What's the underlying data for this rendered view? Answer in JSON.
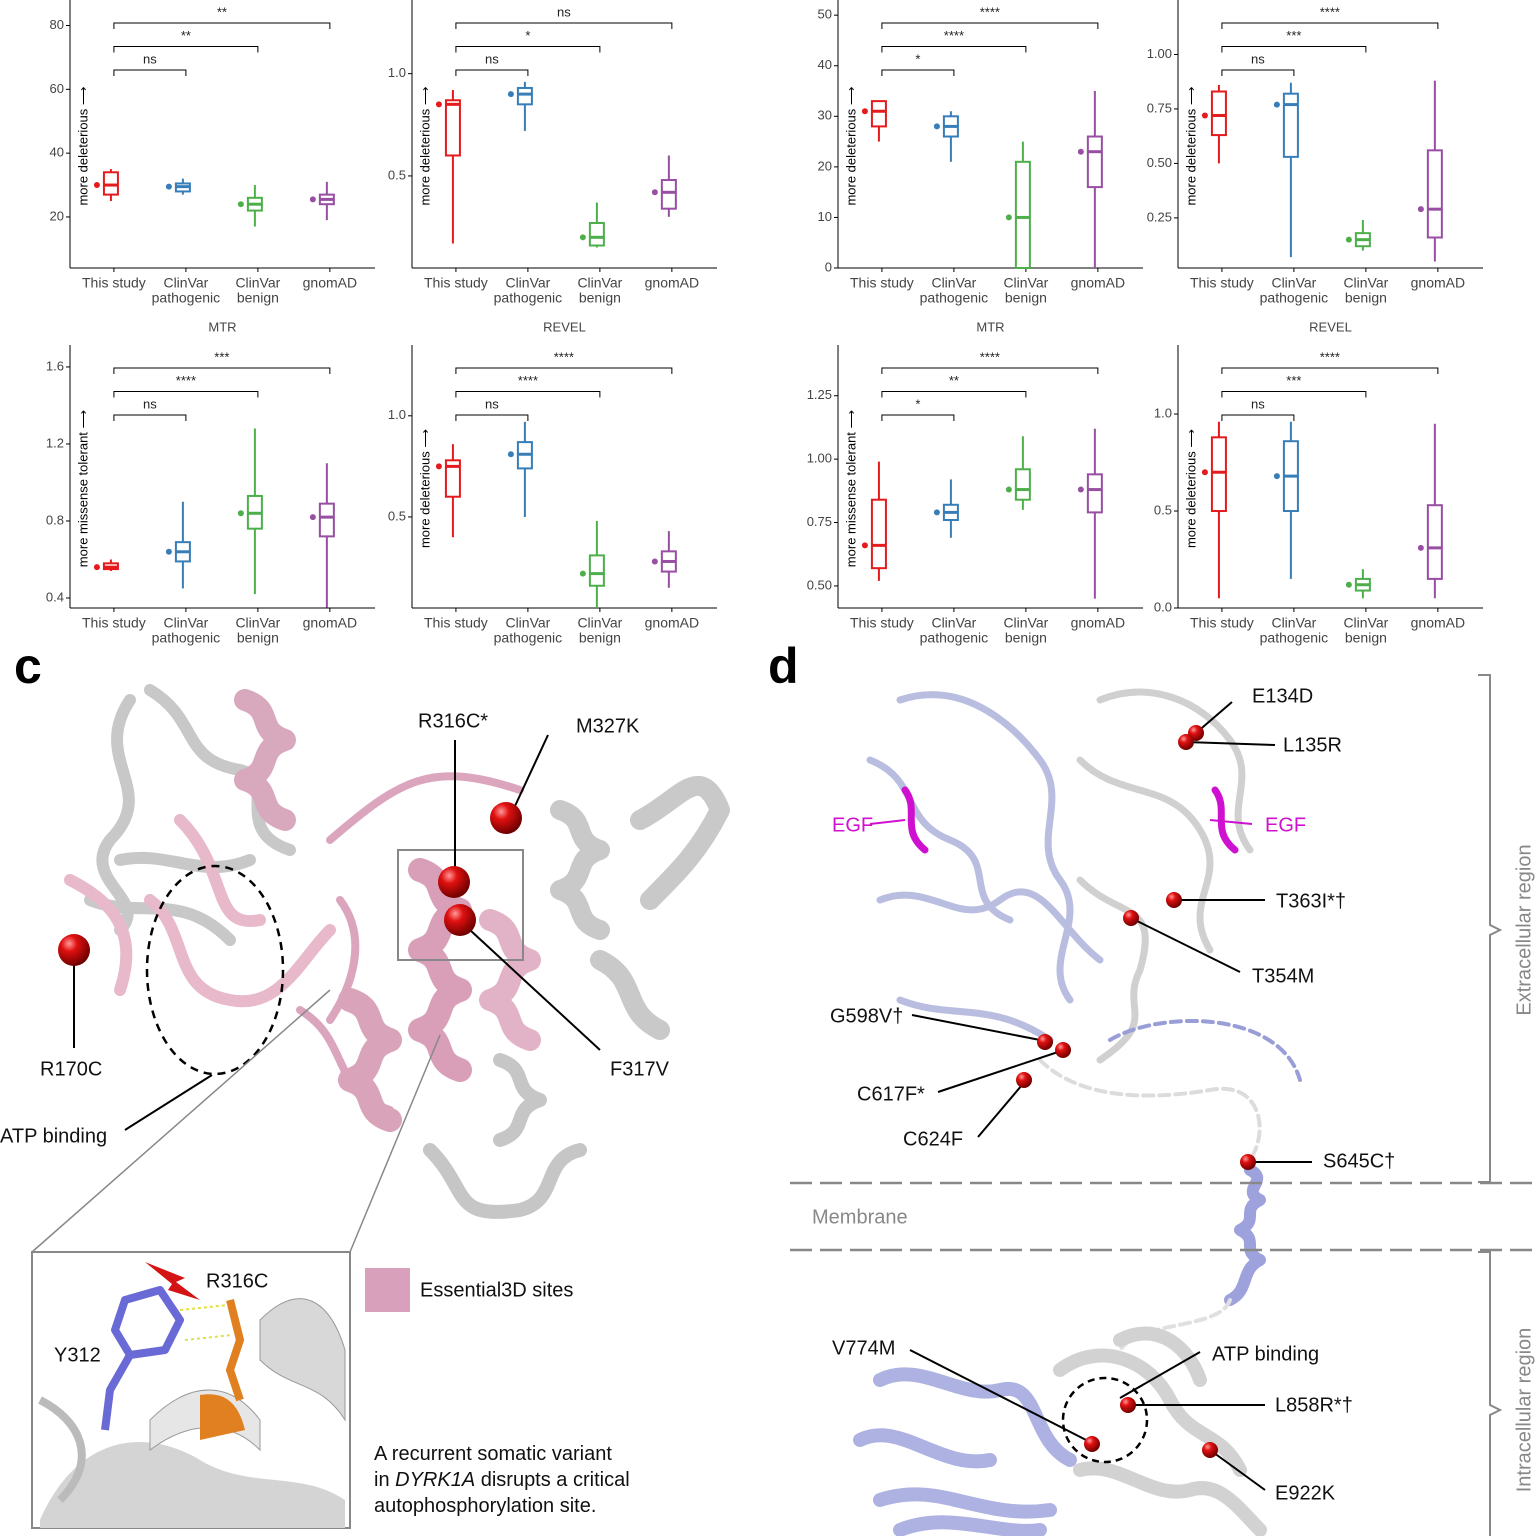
{
  "charts": [
    {
      "type": "box",
      "ylabel": "more deleterious ⟶",
      "ylim": [
        4,
        88
      ],
      "yticks": [
        20,
        40,
        60,
        80
      ],
      "categories": [
        [
          "This study"
        ],
        [
          "ClinVar",
          "pathogenic"
        ],
        [
          "ClinVar",
          "benign"
        ],
        [
          "gnomAD"
        ]
      ],
      "boxes": [
        {
          "color": "#e41a1c",
          "min": 25,
          "q1": 27,
          "median": 30,
          "q3": 34,
          "max": 35
        },
        {
          "color": "#377eb8",
          "min": 27,
          "q1": 28,
          "median": 29.5,
          "q3": 30.5,
          "max": 32
        },
        {
          "color": "#4daf4a",
          "min": 17,
          "q1": 22,
          "median": 24,
          "q3": 26,
          "max": 30
        },
        {
          "color": "#984ea3",
          "min": 19,
          "q1": 24,
          "median": 25.5,
          "q3": 27,
          "max": 31
        }
      ],
      "significance": [
        "ns",
        "**",
        "**"
      ]
    },
    {
      "type": "box",
      "ylabel": "more deleterious ⟶",
      "ylim": [
        0.05,
        1.36
      ],
      "yticks": [
        {
          "value": 0.5,
          "label": "0.5"
        },
        {
          "value": 1.0,
          "label": "1.0"
        }
      ],
      "categories": [
        [
          "This study"
        ],
        [
          "ClinVar",
          "pathogenic"
        ],
        [
          "ClinVar",
          "benign"
        ],
        [
          "gnomAD"
        ]
      ],
      "boxes": [
        {
          "color": "#e41a1c",
          "min": 0.17,
          "q1": 0.6,
          "median": 0.85,
          "q3": 0.87,
          "max": 0.92
        },
        {
          "color": "#377eb8",
          "min": 0.72,
          "q1": 0.85,
          "median": 0.9,
          "q3": 0.93,
          "max": 0.96
        },
        {
          "color": "#4daf4a",
          "min": 0.15,
          "q1": 0.16,
          "median": 0.2,
          "q3": 0.27,
          "max": 0.37
        },
        {
          "color": "#984ea3",
          "min": 0.3,
          "q1": 0.34,
          "median": 0.42,
          "q3": 0.48,
          "max": 0.6
        }
      ],
      "significance": [
        "ns",
        "*",
        "ns"
      ]
    },
    {
      "type": "box",
      "ylabel": "more deleterious ⟶",
      "ylim": [
        0,
        53
      ],
      "yticks": [
        0,
        10,
        20,
        30,
        40,
        50
      ],
      "categories": [
        [
          "This study"
        ],
        [
          "ClinVar",
          "pathogenic"
        ],
        [
          "ClinVar",
          "benign"
        ],
        [
          "gnomAD"
        ]
      ],
      "boxes": [
        {
          "color": "#e41a1c",
          "min": 25,
          "q1": 28,
          "median": 31,
          "q3": 33,
          "max": 33
        },
        {
          "color": "#377eb8",
          "min": 21,
          "q1": 26,
          "median": 28,
          "q3": 30,
          "max": 31
        },
        {
          "color": "#4daf4a",
          "min": 0,
          "q1": 0,
          "median": 10,
          "q3": 21,
          "max": 25
        },
        {
          "color": "#984ea3",
          "min": 0,
          "q1": 16,
          "median": 23,
          "q3": 26,
          "max": 35
        }
      ],
      "significance": [
        "*",
        "****",
        "****"
      ]
    },
    {
      "type": "box",
      "ylabel": "more deleterious ⟶",
      "ylim": [
        0.02,
        1.25
      ],
      "yticks": [
        {
          "value": 0.25,
          "label": "0.25"
        },
        {
          "value": 0.5,
          "label": "0.50"
        },
        {
          "value": 0.75,
          "label": "0.75"
        },
        {
          "value": 1.0,
          "label": "1.00"
        }
      ],
      "categories": [
        [
          "This study"
        ],
        [
          "ClinVar",
          "pathogenic"
        ],
        [
          "ClinVar",
          "benign"
        ],
        [
          "gnomAD"
        ]
      ],
      "boxes": [
        {
          "color": "#e41a1c",
          "min": 0.5,
          "q1": 0.63,
          "median": 0.72,
          "q3": 0.83,
          "max": 0.86
        },
        {
          "color": "#377eb8",
          "min": 0.07,
          "q1": 0.53,
          "median": 0.77,
          "q3": 0.82,
          "max": 0.87
        },
        {
          "color": "#4daf4a",
          "min": 0.1,
          "q1": 0.12,
          "median": 0.15,
          "q3": 0.18,
          "max": 0.24
        },
        {
          "color": "#984ea3",
          "min": 0.05,
          "q1": 0.16,
          "median": 0.29,
          "q3": 0.56,
          "max": 0.88
        }
      ],
      "significance": [
        "ns",
        "***",
        "****"
      ]
    },
    {
      "type": "box",
      "title": "MTR",
      "ylabel": "more missense tolerant ⟶",
      "ylim": [
        0.348,
        1.714
      ],
      "yticks": [
        0.4,
        0.8,
        1.2,
        1.6
      ],
      "categories": [
        [
          "This study"
        ],
        [
          "ClinVar",
          "pathogenic"
        ],
        [
          "ClinVar",
          "benign"
        ],
        [
          "gnomAD"
        ]
      ],
      "boxes": [
        {
          "color": "#e41a1c",
          "min": 0.54,
          "q1": 0.55,
          "median": 0.56,
          "q3": 0.58,
          "max": 0.6
        },
        {
          "color": "#377eb8",
          "min": 0.45,
          "q1": 0.59,
          "median": 0.64,
          "q3": 0.69,
          "max": 0.9
        },
        {
          "color": "#4daf4a",
          "min": 0.42,
          "q1": 0.76,
          "median": 0.84,
          "q3": 0.93,
          "max": 1.28
        },
        {
          "color": "#984ea3",
          "min": 0.35,
          "q1": 0.72,
          "median": 0.82,
          "q3": 0.89,
          "max": 1.1
        }
      ],
      "significance": [
        "ns",
        "****",
        "***"
      ]
    },
    {
      "type": "box",
      "title": "REVEL",
      "ylabel": "more deleterious ⟶",
      "ylim": [
        0.05,
        1.35
      ],
      "yticks": [
        {
          "value": 0.5,
          "label": "0.5"
        },
        {
          "value": 1.0,
          "label": "1.0"
        }
      ],
      "categories": [
        [
          "This study"
        ],
        [
          "ClinVar",
          "pathogenic"
        ],
        [
          "ClinVar",
          "benign"
        ],
        [
          "gnomAD"
        ]
      ],
      "boxes": [
        {
          "color": "#e41a1c",
          "min": 0.4,
          "q1": 0.6,
          "median": 0.75,
          "q3": 0.78,
          "max": 0.86
        },
        {
          "color": "#377eb8",
          "min": 0.5,
          "q1": 0.74,
          "median": 0.81,
          "q3": 0.87,
          "max": 0.97
        },
        {
          "color": "#4daf4a",
          "min": 0.05,
          "q1": 0.16,
          "median": 0.22,
          "q3": 0.31,
          "max": 0.48
        },
        {
          "color": "#984ea3",
          "min": 0.15,
          "q1": 0.23,
          "median": 0.28,
          "q3": 0.33,
          "max": 0.43
        }
      ],
      "significance": [
        "ns",
        "****",
        "****"
      ]
    },
    {
      "type": "box",
      "title": "MTR",
      "ylabel": "more missense tolerant ⟶",
      "ylim": [
        0.413,
        1.45
      ],
      "yticks": [
        {
          "value": 0.5,
          "label": "0.50"
        },
        {
          "value": 0.75,
          "label": "0.75"
        },
        {
          "value": 1.0,
          "label": "1.00"
        },
        {
          "value": 1.25,
          "label": "1.25"
        }
      ],
      "categories": [
        [
          "This study"
        ],
        [
          "ClinVar",
          "pathogenic"
        ],
        [
          "ClinVar",
          "benign"
        ],
        [
          "gnomAD"
        ]
      ],
      "boxes": [
        {
          "color": "#e41a1c",
          "min": 0.52,
          "q1": 0.57,
          "median": 0.66,
          "q3": 0.84,
          "max": 0.99
        },
        {
          "color": "#377eb8",
          "min": 0.69,
          "q1": 0.76,
          "median": 0.79,
          "q3": 0.82,
          "max": 0.92
        },
        {
          "color": "#4daf4a",
          "min": 0.8,
          "q1": 0.84,
          "median": 0.88,
          "q3": 0.96,
          "max": 1.09
        },
        {
          "color": "#984ea3",
          "min": 0.45,
          "q1": 0.79,
          "median": 0.88,
          "q3": 0.94,
          "max": 1.12
        }
      ],
      "significance": [
        "*",
        "**",
        "****"
      ]
    },
    {
      "type": "box",
      "title": "REVEL",
      "ylabel": "more deleterious ⟶",
      "ylim": [
        0,
        1.356
      ],
      "yticks": [
        {
          "value": 0,
          "label": "0.0"
        },
        {
          "value": 0.5,
          "label": "0.5"
        },
        {
          "value": 1.0,
          "label": "1.0"
        }
      ],
      "categories": [
        [
          "This study"
        ],
        [
          "ClinVar",
          "pathogenic"
        ],
        [
          "ClinVar",
          "benign"
        ],
        [
          "gnomAD"
        ]
      ],
      "boxes": [
        {
          "color": "#e41a1c",
          "min": 0.05,
          "q1": 0.5,
          "median": 0.7,
          "q3": 0.88,
          "max": 0.96
        },
        {
          "color": "#377eb8",
          "min": 0.15,
          "q1": 0.5,
          "median": 0.68,
          "q3": 0.86,
          "max": 0.96
        },
        {
          "color": "#4daf4a",
          "min": 0.05,
          "q1": 0.09,
          "median": 0.12,
          "q3": 0.15,
          "max": 0.2
        },
        {
          "color": "#984ea3",
          "min": 0.05,
          "q1": 0.15,
          "median": 0.31,
          "q3": 0.53,
          "max": 0.95
        }
      ],
      "significance": [
        "ns",
        "***",
        "****"
      ]
    }
  ],
  "panel_c": {
    "label": "c",
    "sites": [
      "R316C*",
      "M327K",
      "R170C",
      "F317V"
    ],
    "atp": "ATP binding",
    "inset": [
      "R316C",
      "Y312"
    ],
    "legend": "Essential3D sites",
    "caption": [
      [
        "A recurrent somatic variant"
      ],
      [
        "in ",
        "DYRK1A",
        " disrupts a critical"
      ],
      [
        "autophosphorylation site."
      ]
    ]
  },
  "panel_d": {
    "label": "d",
    "sites": [
      "E134D",
      "L135R",
      "T363I*†",
      "T354M",
      "G598V†",
      "C617F*",
      "C624F",
      "S645C†",
      "V774M",
      "L858R*†",
      "E922K"
    ],
    "egf": [
      "EGF",
      "EGF"
    ],
    "membrane": "Membrane",
    "atp": "ATP binding",
    "regions": [
      "Extracellular region",
      "Intracellular region"
    ]
  }
}
